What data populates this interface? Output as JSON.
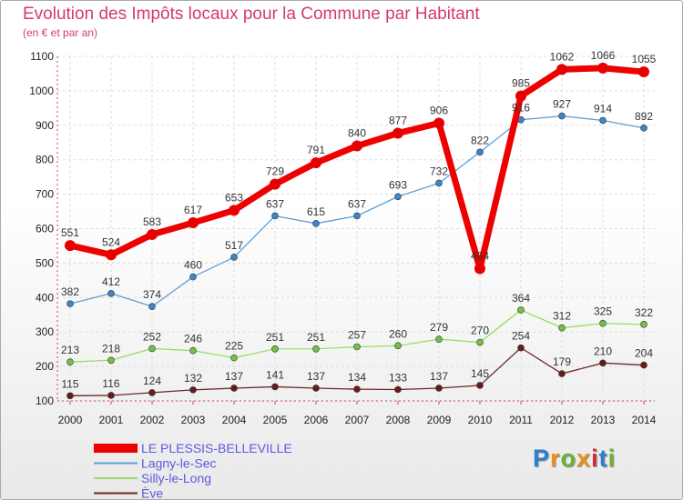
{
  "title": "Evolution des Impôts locaux pour la Commune par Habitant",
  "subtitle": "(en € et par an)",
  "logo": {
    "text": "Proxiti",
    "colors": [
      "#2f7fd0",
      "#e8921d",
      "#6bb23a",
      "#e8921d",
      "#d9282f",
      "#2f7fd0",
      "#6bb23a"
    ]
  },
  "chart_data": {
    "type": "line",
    "title": "Evolution des Impôts locaux pour la Commune par Habitant",
    "subtitle": "(en € et par an)",
    "xlabel": "",
    "ylabel": "",
    "categories": [
      "2000",
      "2001",
      "2002",
      "2003",
      "2004",
      "2005",
      "2006",
      "2007",
      "2008",
      "2009",
      "2010",
      "2011",
      "2012",
      "2013",
      "2014"
    ],
    "ylim": [
      100,
      1100
    ],
    "yticks": [
      "100",
      "200",
      "300",
      "400",
      "500",
      "600",
      "700",
      "800",
      "900",
      "1000",
      "1100"
    ],
    "legend_position": "bottom-left",
    "series": [
      {
        "name": "LE PLESSIS-BELLEVILLE",
        "color": "#ee0000",
        "markerColor": "#e60000",
        "width": 7,
        "r": 6,
        "labelDy": -10,
        "values": [
          551,
          524,
          583,
          617,
          653,
          729,
          791,
          840,
          877,
          906,
          484,
          985,
          1062,
          1066,
          1055
        ]
      },
      {
        "name": "Lagny-le-Sec",
        "color": "#5f9fd4",
        "markerColor": "#3d85c6",
        "width": 1.3,
        "r": 3.5,
        "labelDy": -9,
        "values": [
          382,
          412,
          374,
          460,
          517,
          637,
          615,
          637,
          693,
          732,
          822,
          916,
          927,
          914,
          892
        ]
      },
      {
        "name": "Silly-le-Long",
        "color": "#99dd66",
        "markerColor": "#77c040",
        "width": 1.3,
        "r": 3.5,
        "labelDy": -9,
        "values": [
          213,
          218,
          252,
          246,
          225,
          251,
          251,
          257,
          260,
          279,
          270,
          364,
          312,
          325,
          322
        ]
      },
      {
        "name": "Ève",
        "color": "#6b2828",
        "markerColor": "#6b1a1a",
        "width": 1.3,
        "r": 3.5,
        "labelDy": -9,
        "values": [
          115,
          116,
          124,
          132,
          137,
          141,
          137,
          134,
          133,
          137,
          145,
          254,
          179,
          210,
          204
        ]
      }
    ]
  }
}
